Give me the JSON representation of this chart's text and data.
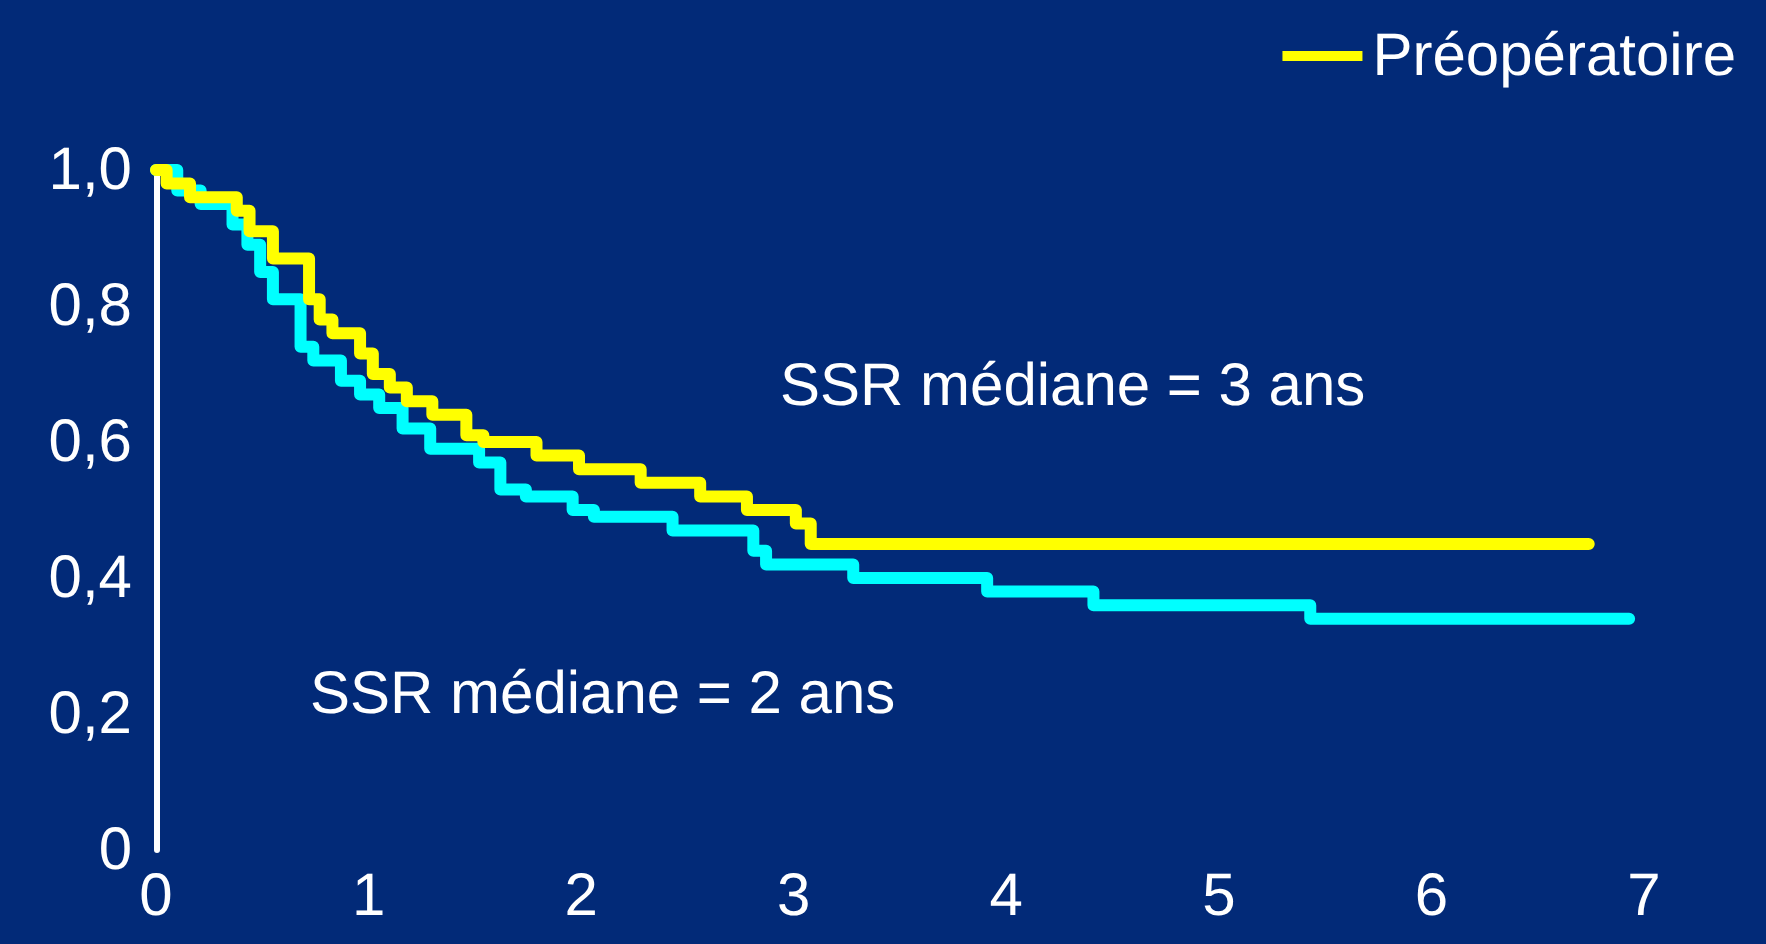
{
  "chart_data": {
    "type": "step",
    "xlim": [
      0,
      7
    ],
    "xticks": [
      0,
      1,
      2,
      3,
      4,
      5,
      6,
      7
    ],
    "ylim": [
      0,
      1
    ],
    "yticks": [
      {
        "value": 0,
        "label": "0"
      },
      {
        "value": 0.2,
        "label": "0,2"
      },
      {
        "value": 0.4,
        "label": "0,4"
      },
      {
        "value": 0.6,
        "label": "0,6"
      },
      {
        "value": 0.8,
        "label": "0,8"
      },
      {
        "value": 1,
        "label": "1,0"
      }
    ],
    "grid": false,
    "legend": "top right",
    "marker": "none",
    "line_style": "solid",
    "annotations": [
      "SSR médiane = 3 ans",
      "SSR médiane = 2 ans"
    ],
    "series": [
      {
        "name": "Préopératoire",
        "color": "#ffff00",
        "x": [
          0,
          0.05,
          0.16,
          0.38,
          0.44,
          0.55,
          0.72,
          0.77,
          0.83,
          0.96,
          1.02,
          1.1,
          1.18,
          1.3,
          1.46,
          1.54,
          1.79,
          1.99,
          2.28,
          2.56,
          2.78,
          3.01,
          3.08,
          6.74
        ],
        "values": [
          1,
          0.98,
          0.96,
          0.94,
          0.91,
          0.87,
          0.81,
          0.78,
          0.76,
          0.73,
          0.7,
          0.68,
          0.66,
          0.64,
          0.61,
          0.6,
          0.58,
          0.56,
          0.54,
          0.52,
          0.5,
          0.48,
          0.45,
          0.45
        ]
      },
      {
        "color": "#00ffff",
        "x": [
          0,
          0.1,
          0.21,
          0.36,
          0.43,
          0.49,
          0.55,
          0.68,
          0.74,
          0.87,
          0.96,
          1.05,
          1.16,
          1.29,
          1.52,
          1.62,
          1.74,
          1.96,
          2.06,
          2.43,
          2.81,
          2.87,
          3.28,
          3.91,
          4.41,
          5.43,
          6.93
        ],
        "values": [
          1,
          0.97,
          0.95,
          0.92,
          0.89,
          0.85,
          0.81,
          0.74,
          0.72,
          0.69,
          0.67,
          0.65,
          0.62,
          0.59,
          0.57,
          0.53,
          0.52,
          0.5,
          0.49,
          0.47,
          0.44,
          0.42,
          0.4,
          0.38,
          0.36,
          0.34,
          0.34
        ]
      }
    ]
  }
}
